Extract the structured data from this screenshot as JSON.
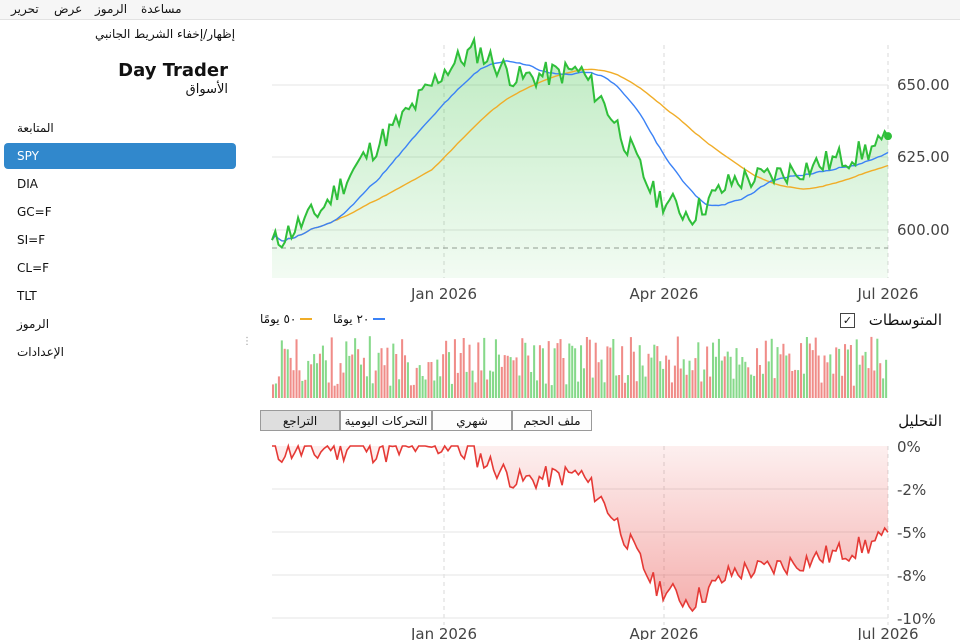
{
  "menu": [
    "تحرير",
    "عرض",
    "الرموز",
    "مساعدة"
  ],
  "sidebar": {
    "toggle_label": "إظهار/إخفاء الشريط الجانبي",
    "title": "Day Trader",
    "subtitle": "الأسواق",
    "items": [
      "المتابعة",
      "SPY",
      "DIA",
      "GC=F",
      "SI=F",
      "CL=F",
      "TLT",
      "الرموز",
      "الإعدادات"
    ],
    "active_item": "SPY"
  },
  "price_chart": {
    "y_ticks": [
      "650.00",
      "625.00",
      "600.00"
    ],
    "x_ticks": [
      "Jan 2026",
      "Apr 2026",
      "Jul 2026"
    ]
  },
  "averages": {
    "label": "المتوسطات",
    "checked": true,
    "checkmark": "✓",
    "legend": [
      {
        "label": "٢٠ يومًا",
        "color": "#3b82f6"
      },
      {
        "label": "٥٠ يومًا",
        "color": "#f0ad28"
      }
    ]
  },
  "analysis": {
    "label": "التحليل",
    "buttons": [
      "ملف الحجم",
      "شهري",
      "التحركات اليومية",
      "التراجع"
    ],
    "active_button": "التراجع"
  },
  "drawdown_chart": {
    "y_ticks": [
      "0%",
      "-2%",
      "-5%",
      "-8%",
      "-10%"
    ],
    "x_ticks": [
      "Jan 2026",
      "Apr 2026",
      "Jul 2026"
    ]
  },
  "colors": {
    "price_line": "#2fbf3a",
    "ma20": "#3b82f6",
    "ma50": "#f0ad28",
    "drawdown": "#e53935",
    "selection": "#3188cc"
  }
}
